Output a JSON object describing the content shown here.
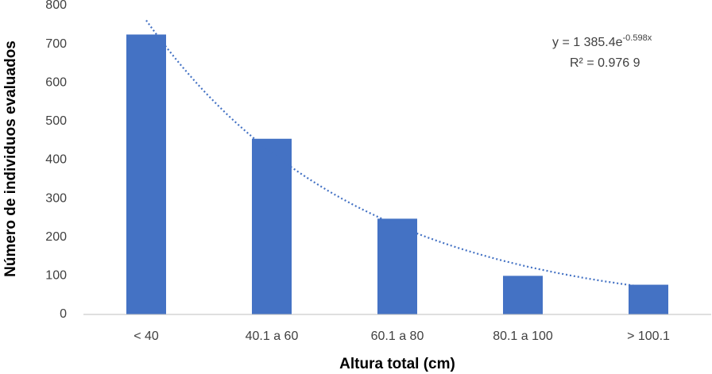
{
  "chart_data": {
    "type": "bar",
    "x_label": "Altura total (cm)",
    "y_label": "Número de individuos evaluados",
    "categories": [
      "< 40",
      "40.1 a 60",
      "60.1 a 80",
      "80.1 a 100",
      "> 100.1"
    ],
    "values": [
      725,
      455,
      248,
      100,
      77
    ],
    "color": "#4472c4",
    "ylim": [
      0,
      800
    ],
    "yticks": [
      0,
      100,
      200,
      300,
      400,
      500,
      600,
      700,
      800
    ],
    "grid": false,
    "trendline": {
      "a": 1385.4,
      "b": -0.598,
      "color": "#4472c4",
      "label": "y = 1 385.4e",
      "exponent_label": "-0.598x",
      "r2_label": "R² = 0.976 9"
    }
  }
}
